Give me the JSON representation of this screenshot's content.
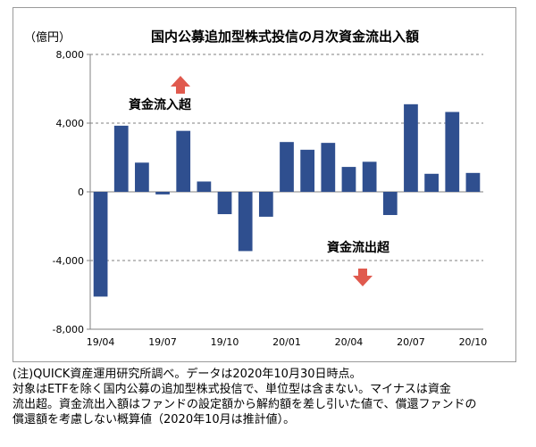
{
  "chart_data": {
    "type": "bar",
    "title": "国内公募追加型株式投信の月次資金流出入額",
    "ylabel": "（億円）",
    "ylim": [
      -8000,
      8000
    ],
    "yticks": [
      8000,
      4000,
      0,
      -4000,
      -8000
    ],
    "ytick_labels": [
      "8,000",
      "4,000",
      "0",
      "-4,000",
      "-8,000"
    ],
    "grid": true,
    "categories": [
      "19/04",
      "19/05",
      "19/06",
      "19/07",
      "19/08",
      "19/09",
      "19/10",
      "19/11",
      "19/12",
      "20/01",
      "20/02",
      "20/03",
      "20/04",
      "20/05",
      "20/06",
      "20/07",
      "20/08",
      "20/09",
      "20/10"
    ],
    "xtick_labels": [
      "19/04",
      "",
      "",
      "19/07",
      "",
      "",
      "19/10",
      "",
      "",
      "20/01",
      "",
      "",
      "20/04",
      "",
      "",
      "20/07",
      "",
      "",
      "20/10"
    ],
    "values": [
      -6100,
      3850,
      1700,
      -150,
      3550,
      600,
      -1300,
      -3450,
      -1450,
      2900,
      2450,
      2850,
      1450,
      1750,
      -1350,
      5100,
      1050,
      4650,
      1100
    ],
    "bar_color": "#2f4f8f",
    "annotations": {
      "inflow_label": "資金流入超",
      "outflow_label": "資金流出超",
      "arrow_color": "#e05a4e"
    }
  },
  "notes": [
    "(注)QUICK資産運用研究所調べ。データは2020年10月30日時点。",
    "対象はETFを除く国内公募の追加型株式投信で、単位型は含まない。マイナスは資金",
    "流出超。資金流出入額はファンドの設定額から解約額を差し引いた値で、償還ファンドの",
    "償還額を考慮しない概算値（2020年10月は推計値）。"
  ]
}
